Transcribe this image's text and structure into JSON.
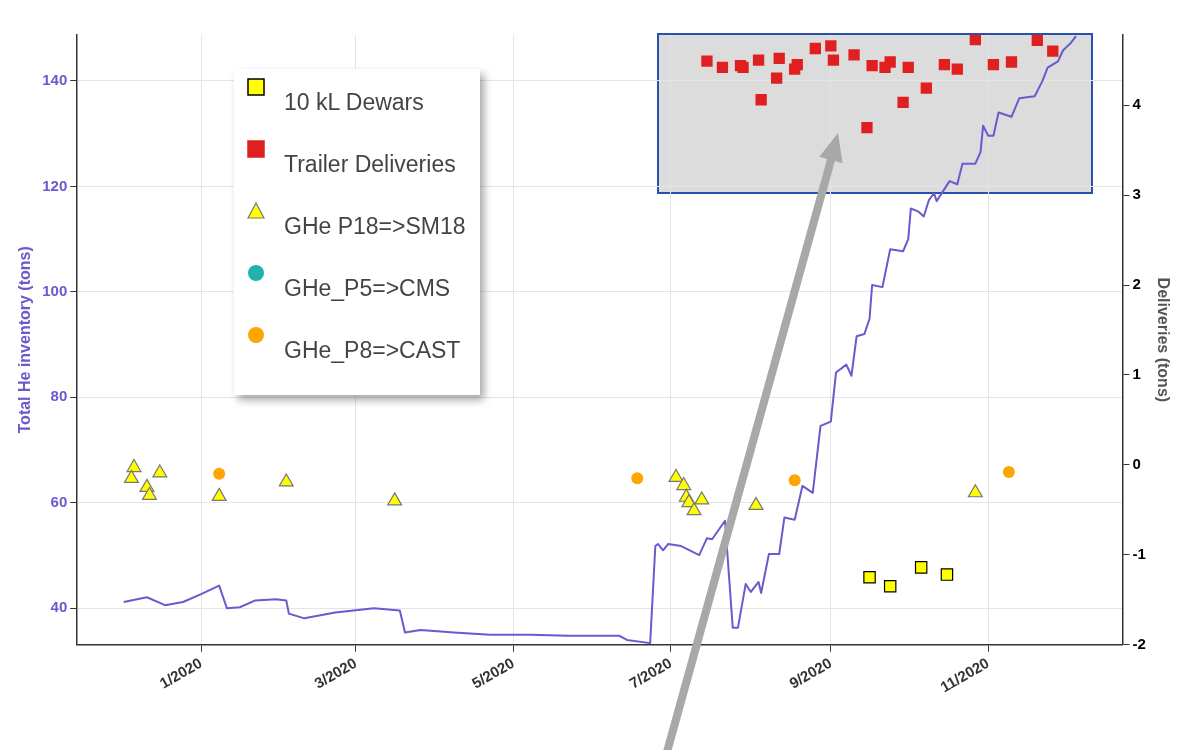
{
  "chart_data": {
    "type": "scatter",
    "ylabel": "Total He inventory (tons)",
    "y2label": "Deliveries (tons)",
    "xlim": [
      "2019-11-14",
      "2020-12-23"
    ],
    "xticks": [
      {
        "value": "2020-01-01",
        "label": "1/2020"
      },
      {
        "value": "2020-03-01",
        "label": "3/2020"
      },
      {
        "value": "2020-05-01",
        "label": "5/2020"
      },
      {
        "value": "2020-07-01",
        "label": "7/2020"
      },
      {
        "value": "2020-09-01",
        "label": "9/2020"
      },
      {
        "value": "2020-11-01",
        "label": "11/2020"
      }
    ],
    "ylim": [
      33.1,
      148.7
    ],
    "yticks": [
      40,
      60,
      80,
      100,
      120,
      140
    ],
    "y2lim": [
      -2,
      4.78
    ],
    "y2ticks": [
      -2,
      -1,
      0,
      1,
      2,
      3,
      4
    ],
    "grid": true,
    "legend": "top left",
    "series": [
      {
        "name": "10 kL Dewars",
        "color": "#ffff00",
        "marker": "square",
        "axis": "y2",
        "x": [
          "2020-09-16",
          "2020-09-24",
          "2020-10-06",
          "2020-10-16"
        ],
        "values": [
          -1.25,
          -1.35,
          -1.14,
          -1.22
        ]
      },
      {
        "name": "Trailer Deliveries",
        "color": "#e02020",
        "marker": "square",
        "axis": "y2",
        "x": [
          "2020-07-15",
          "2020-07-21",
          "2020-07-28",
          "2020-07-29",
          "2020-08-04",
          "2020-08-05",
          "2020-08-11",
          "2020-08-12",
          "2020-08-18",
          "2020-08-19",
          "2020-08-26",
          "2020-09-01",
          "2020-09-02",
          "2020-09-10",
          "2020-09-15",
          "2020-09-17",
          "2020-09-22",
          "2020-09-24",
          "2020-09-29",
          "2020-10-01",
          "2020-10-08",
          "2020-10-15",
          "2020-10-20",
          "2020-10-27",
          "2020-11-03",
          "2020-11-10",
          "2020-11-20",
          "2020-11-26"
        ],
        "values": [
          4.49,
          4.42,
          4.44,
          4.42,
          4.5,
          4.06,
          4.3,
          4.52,
          4.4,
          4.45,
          4.63,
          4.66,
          4.5,
          4.56,
          3.75,
          4.44,
          4.42,
          4.48,
          4.03,
          4.42,
          4.19,
          4.45,
          4.4,
          4.73,
          4.45,
          4.48,
          4.72,
          4.6
        ]
      },
      {
        "name": "GHe P18=>SM18",
        "color": "#ffff00",
        "marker": "triangle",
        "axis": "y2",
        "x": [
          "2019-12-06",
          "2019-12-05",
          "2019-12-11",
          "2019-12-12",
          "2019-12-16",
          "2020-01-08",
          "2020-02-03",
          "2020-03-16",
          "2020-07-03",
          "2020-07-06",
          "2020-07-07",
          "2020-07-08",
          "2020-07-10",
          "2020-07-13",
          "2020-08-03",
          "2020-10-27"
        ],
        "values": [
          -0.03,
          -0.15,
          -0.25,
          -0.34,
          -0.09,
          -0.35,
          -0.19,
          -0.4,
          -0.14,
          -0.23,
          -0.36,
          -0.42,
          -0.51,
          -0.39,
          -0.45,
          -0.31
        ]
      },
      {
        "name": "GHe_P5=>CMS",
        "color": "#20b2aa",
        "marker": "circle",
        "axis": "y2"
      },
      {
        "name": "GHe_P8=>CAST",
        "color": "#ffa500",
        "marker": "circle",
        "axis": "y2",
        "x": [
          "2020-01-08",
          "2020-06-18",
          "2020-08-18",
          "2020-11-09"
        ],
        "values": [
          -0.1,
          -0.15,
          -0.17,
          -0.08
        ]
      },
      {
        "type": "line",
        "color": "#6a5acd",
        "marker": "none",
        "line_style": "solid",
        "axis": "y",
        "x": [
          "2019-12-02",
          "2019-12-11",
          "2019-12-18",
          "2019-12-25",
          "2020-01-01",
          "2020-01-08",
          "2020-01-11",
          "2020-01-16",
          "2020-01-22",
          "2020-01-30",
          "2020-02-03",
          "2020-02-04",
          "2020-02-10",
          "2020-02-22",
          "2020-03-08",
          "2020-03-18",
          "2020-03-20",
          "2020-03-26",
          "2020-04-08",
          "2020-04-22",
          "2020-05-08",
          "2020-05-22",
          "2020-06-11",
          "2020-06-14",
          "2020-06-23",
          "2020-06-25",
          "2020-06-26",
          "2020-06-28",
          "2020-06-30",
          "2020-07-05",
          "2020-07-12",
          "2020-07-15",
          "2020-07-17",
          "2020-07-22",
          "2020-07-25",
          "2020-07-27",
          "2020-07-30",
          "2020-08-01",
          "2020-08-04",
          "2020-08-05",
          "2020-08-08",
          "2020-08-12",
          "2020-08-14",
          "2020-08-18",
          "2020-08-21",
          "2020-08-25",
          "2020-08-28",
          "2020-09-01",
          "2020-09-03",
          "2020-09-07",
          "2020-09-09",
          "2020-09-11",
          "2020-09-14",
          "2020-09-16",
          "2020-09-17",
          "2020-09-21",
          "2020-09-24",
          "2020-09-29",
          "2020-10-01",
          "2020-10-02",
          "2020-10-05",
          "2020-10-07",
          "2020-10-09",
          "2020-10-11",
          "2020-10-12",
          "2020-10-17",
          "2020-10-20",
          "2020-10-22",
          "2020-10-27",
          "2020-10-29",
          "2020-10-30",
          "2020-11-01",
          "2020-11-03",
          "2020-11-05",
          "2020-11-10",
          "2020-11-13",
          "2020-11-19",
          "2020-11-22",
          "2020-11-24",
          "2020-11-28",
          "2020-11-30",
          "2020-12-03",
          "2020-12-05"
        ],
        "values": [
          41.2,
          42.1,
          40.6,
          41.2,
          42.7,
          44.3,
          40.0,
          40.2,
          41.5,
          41.7,
          41.5,
          39.0,
          38.1,
          39.2,
          40.0,
          39.6,
          35.4,
          35.9,
          35.4,
          35.0,
          35.0,
          34.8,
          34.8,
          34.0,
          33.4,
          51.8,
          52.2,
          51.0,
          52.2,
          51.8,
          50.1,
          53.3,
          53.1,
          56.6,
          36.3,
          36.3,
          44.6,
          43.1,
          45.0,
          42.9,
          50.3,
          50.3,
          57.2,
          56.8,
          63.2,
          61.9,
          74.6,
          75.4,
          84.7,
          86.2,
          84.1,
          91.6,
          92.0,
          94.9,
          101.3,
          100.9,
          108.1,
          107.7,
          110.0,
          115.8,
          115.2,
          114.3,
          117.4,
          118.7,
          117.2,
          121.0,
          120.4,
          124.3,
          124.3,
          126.5,
          131.5,
          129.6,
          129.6,
          134.0,
          133.2,
          136.7,
          137.1,
          140.0,
          142.5,
          143.7,
          145.8,
          147.2,
          148.5
        ]
      }
    ]
  }
}
